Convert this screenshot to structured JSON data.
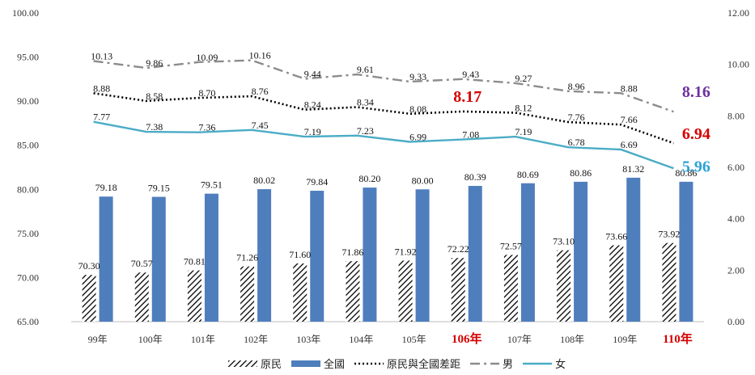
{
  "chart_data": {
    "type": "bar",
    "categories": [
      "99年",
      "100年",
      "101年",
      "102年",
      "103年",
      "104年",
      "105年",
      "106年",
      "107年",
      "108年",
      "109年",
      "110年"
    ],
    "highlight_categories": [
      "106年",
      "110年"
    ],
    "highlight_color": "#d40000",
    "left_axis": {
      "min": 65,
      "max": 100,
      "step": 5,
      "ticks": [
        "65.00",
        "70.00",
        "75.00",
        "80.00",
        "85.00",
        "90.00",
        "95.00",
        "100.00"
      ]
    },
    "right_axis": {
      "min": 0,
      "max": 12,
      "step": 2,
      "ticks": [
        "0.00",
        "2.00",
        "4.00",
        "6.00",
        "8.00",
        "10.00",
        "12.00"
      ]
    },
    "grid": false,
    "legend_position": "bottom",
    "series": [
      {
        "name": "原民",
        "kind": "bar",
        "axis": "left",
        "pattern": "hatched",
        "values": [
          70.3,
          70.57,
          70.81,
          71.26,
          71.6,
          71.86,
          71.92,
          72.22,
          72.57,
          73.1,
          73.66,
          73.92
        ],
        "labels": [
          "70.30",
          "70.57",
          "70.81",
          "71.26",
          "71.60",
          "71.86",
          "71.92",
          "72.22",
          "72.57",
          "73.10",
          "73.66",
          "73.92"
        ]
      },
      {
        "name": "全國",
        "kind": "bar",
        "axis": "left",
        "color": "#4f7ebd",
        "values": [
          79.18,
          79.15,
          79.51,
          80.02,
          79.84,
          80.2,
          80.0,
          80.39,
          80.69,
          80.86,
          81.32,
          80.86
        ],
        "labels": [
          "79.18",
          "79.15",
          "79.51",
          "80.02",
          "79.84",
          "80.20",
          "80.00",
          "80.39",
          "80.69",
          "80.86",
          "81.32",
          "80.86"
        ]
      },
      {
        "name": "原民與全國差距",
        "kind": "line",
        "axis": "right",
        "style": "dotted",
        "color": "#000000",
        "values": [
          8.88,
          8.58,
          8.7,
          8.76,
          8.24,
          8.34,
          8.08,
          8.17,
          8.12,
          7.76,
          7.66,
          6.94
        ],
        "labels": [
          "8.88",
          "8.58",
          "8.70",
          "8.76",
          "8.24",
          "8.34",
          "8.08",
          "8.17",
          "8.12",
          "7.76",
          "7.66",
          "6.94"
        ]
      },
      {
        "name": "男",
        "kind": "line",
        "axis": "right",
        "style": "dashdot",
        "color": "#8c8c8c",
        "values": [
          10.13,
          9.86,
          10.09,
          10.16,
          9.44,
          9.61,
          9.33,
          9.43,
          9.27,
          8.96,
          8.88,
          8.16
        ],
        "labels": [
          "10.13",
          "9.86",
          "10.09",
          "10.16",
          "9.44",
          "9.61",
          "9.33",
          "9.43",
          "9.27",
          "8.96",
          "8.88",
          "8.16"
        ]
      },
      {
        "name": "女",
        "kind": "line",
        "axis": "right",
        "style": "solid",
        "color": "#4bacc6",
        "values": [
          7.77,
          7.38,
          7.36,
          7.45,
          7.19,
          7.23,
          6.99,
          7.08,
          7.19,
          6.78,
          6.69,
          5.96
        ],
        "labels": [
          "7.77",
          "7.38",
          "7.36",
          "7.45",
          "7.19",
          "7.23",
          "6.99",
          "7.08",
          "7.19",
          "6.78",
          "6.69",
          "5.96"
        ]
      }
    ],
    "callouts": [
      {
        "series": "原民與全國差距",
        "index": 7,
        "text": "8.17",
        "color": "#d40000"
      },
      {
        "series": "原民與全國差距",
        "index": 11,
        "text": "6.94",
        "color": "#d40000"
      },
      {
        "series": "男",
        "index": 11,
        "text": "8.16",
        "color": "#7030a0"
      },
      {
        "series": "女",
        "index": 11,
        "text": "5.96",
        "color": "#2ea3d6"
      }
    ]
  }
}
